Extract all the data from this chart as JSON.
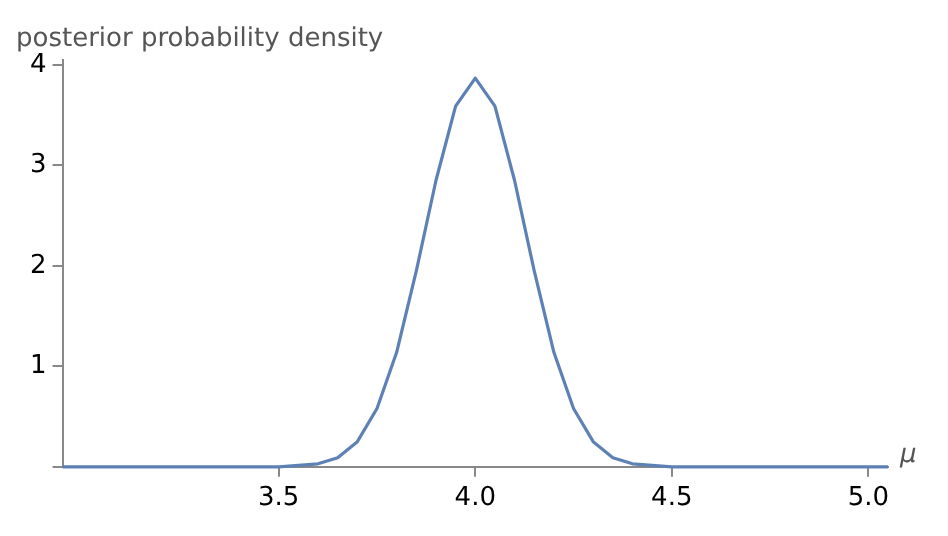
{
  "chart_data": {
    "type": "line",
    "xlabel": "μ",
    "ylabel": "posterior probability density",
    "x": [
      2.95,
      3.5,
      3.6,
      3.65,
      3.7,
      3.75,
      3.8,
      3.85,
      3.9,
      3.95,
      4.0,
      4.05,
      4.1,
      4.15,
      4.2,
      4.25,
      4.3,
      4.35,
      4.4,
      4.5,
      5.05
    ],
    "series": [
      {
        "color": "#5e81b5",
        "values": [
          0,
          0,
          0.03,
          0.09,
          0.25,
          0.58,
          1.14,
          1.95,
          2.85,
          3.59,
          3.87,
          3.59,
          2.85,
          1.95,
          1.14,
          0.58,
          0.25,
          0.09,
          0.03,
          0,
          0
        ]
      }
    ],
    "xlim": [
      2.95,
      5.05
    ],
    "ylim": [
      0,
      4.05
    ],
    "xticks": [
      3.5,
      {
        "value": 4,
        "label": "4.0"
      },
      4.5,
      {
        "value": 5,
        "label": "5.0"
      }
    ],
    "yticks": [
      {
        "value": 0,
        "label": null
      },
      1,
      2,
      3,
      4
    ],
    "grid": false,
    "legend": false,
    "marker": "none",
    "line_style": "solid"
  }
}
